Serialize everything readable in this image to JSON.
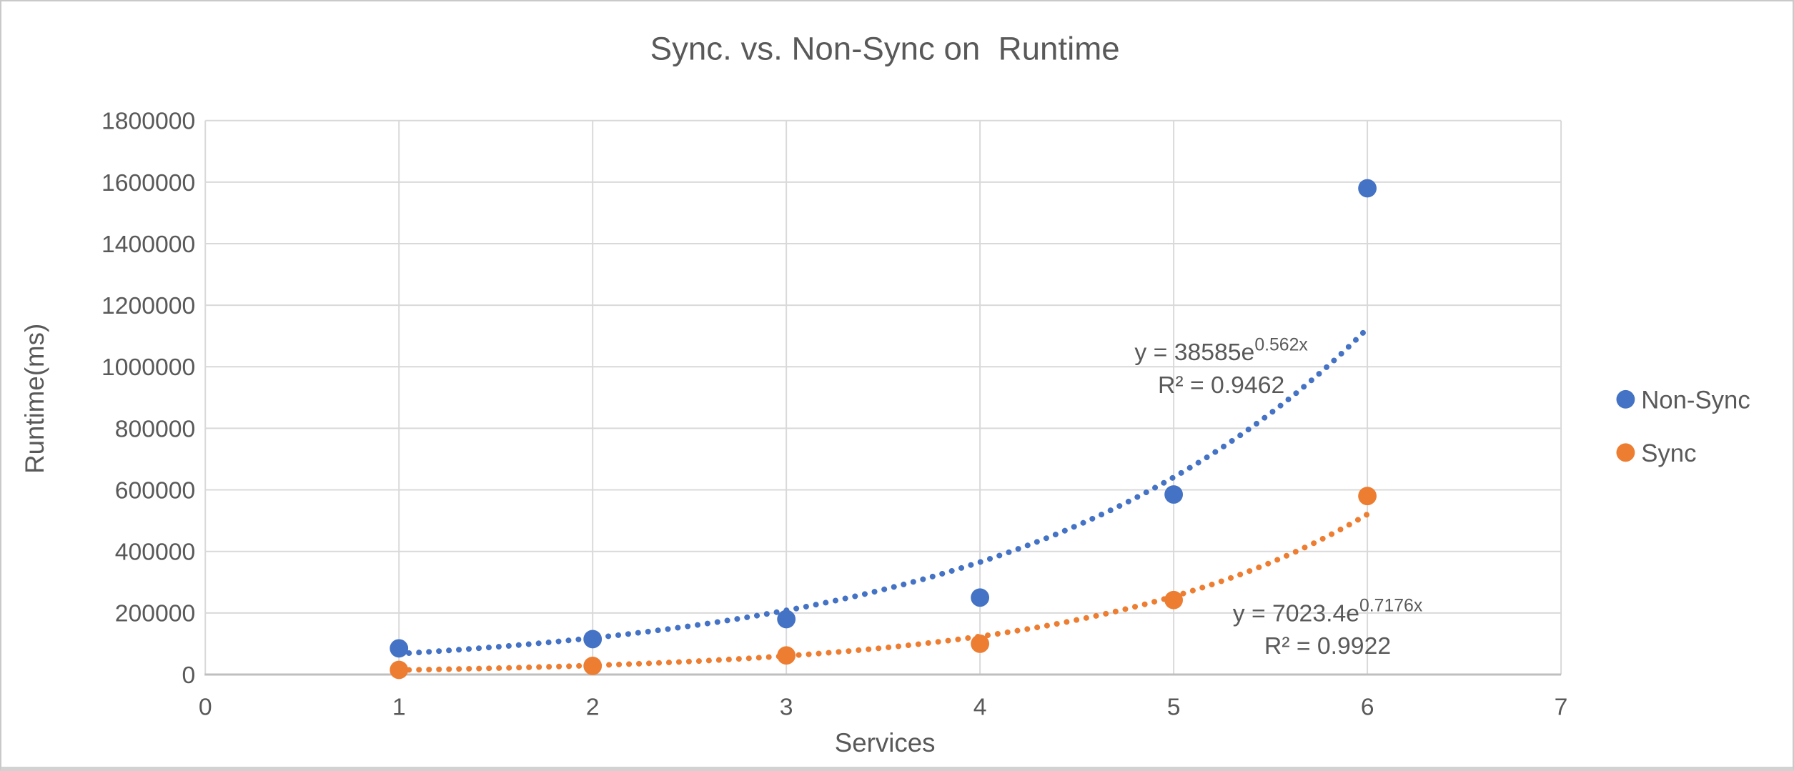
{
  "page_title": "Sync. vs. Non-Sync on  Runtime",
  "colors": {
    "non_sync": "#4472C4",
    "sync": "#ED7D31",
    "text": "#595959",
    "gridline": "#D9D9D9",
    "axis_line": "#BFBFBF",
    "background": "#FFFFFF"
  },
  "chart_data": {
    "type": "scatter",
    "title": "Sync. vs. Non-Sync on  Runtime",
    "xlabel": "Services",
    "ylabel": "Runtime(ms)",
    "xlim": [
      0,
      7
    ],
    "ylim": [
      0,
      1800000
    ],
    "x_ticks": [
      0,
      1,
      2,
      3,
      4,
      5,
      6,
      7
    ],
    "y_ticks": [
      0,
      200000,
      400000,
      600000,
      800000,
      1000000,
      1200000,
      1400000,
      1600000,
      1800000
    ],
    "grid": true,
    "legend_position": "right",
    "series": [
      {
        "name": "Non-Sync",
        "color": "#4472C4",
        "marker": "circle",
        "x": [
          1,
          2,
          3,
          4,
          5,
          6
        ],
        "y": [
          85000,
          115000,
          180000,
          250000,
          585000,
          1580000
        ],
        "trendline": {
          "type": "exponential",
          "style": "dotted",
          "a": 38585,
          "b": 0.562,
          "x_range": [
            1,
            6
          ],
          "label_base": "y = 38585e",
          "label_exp": "0.562x",
          "r2_label": "R² = 0.9462"
        }
      },
      {
        "name": "Sync",
        "color": "#ED7D31",
        "marker": "circle",
        "x": [
          1,
          2,
          3,
          4,
          5,
          6
        ],
        "y": [
          15000,
          28000,
          62000,
          100000,
          242000,
          580000
        ],
        "trendline": {
          "type": "exponential",
          "style": "dotted",
          "a": 7023.4,
          "b": 0.7176,
          "x_range": [
            1,
            6
          ],
          "label_base": "y = 7023.4e",
          "label_exp": "0.7176x",
          "r2_label": "R² = 0.9922"
        }
      }
    ]
  }
}
